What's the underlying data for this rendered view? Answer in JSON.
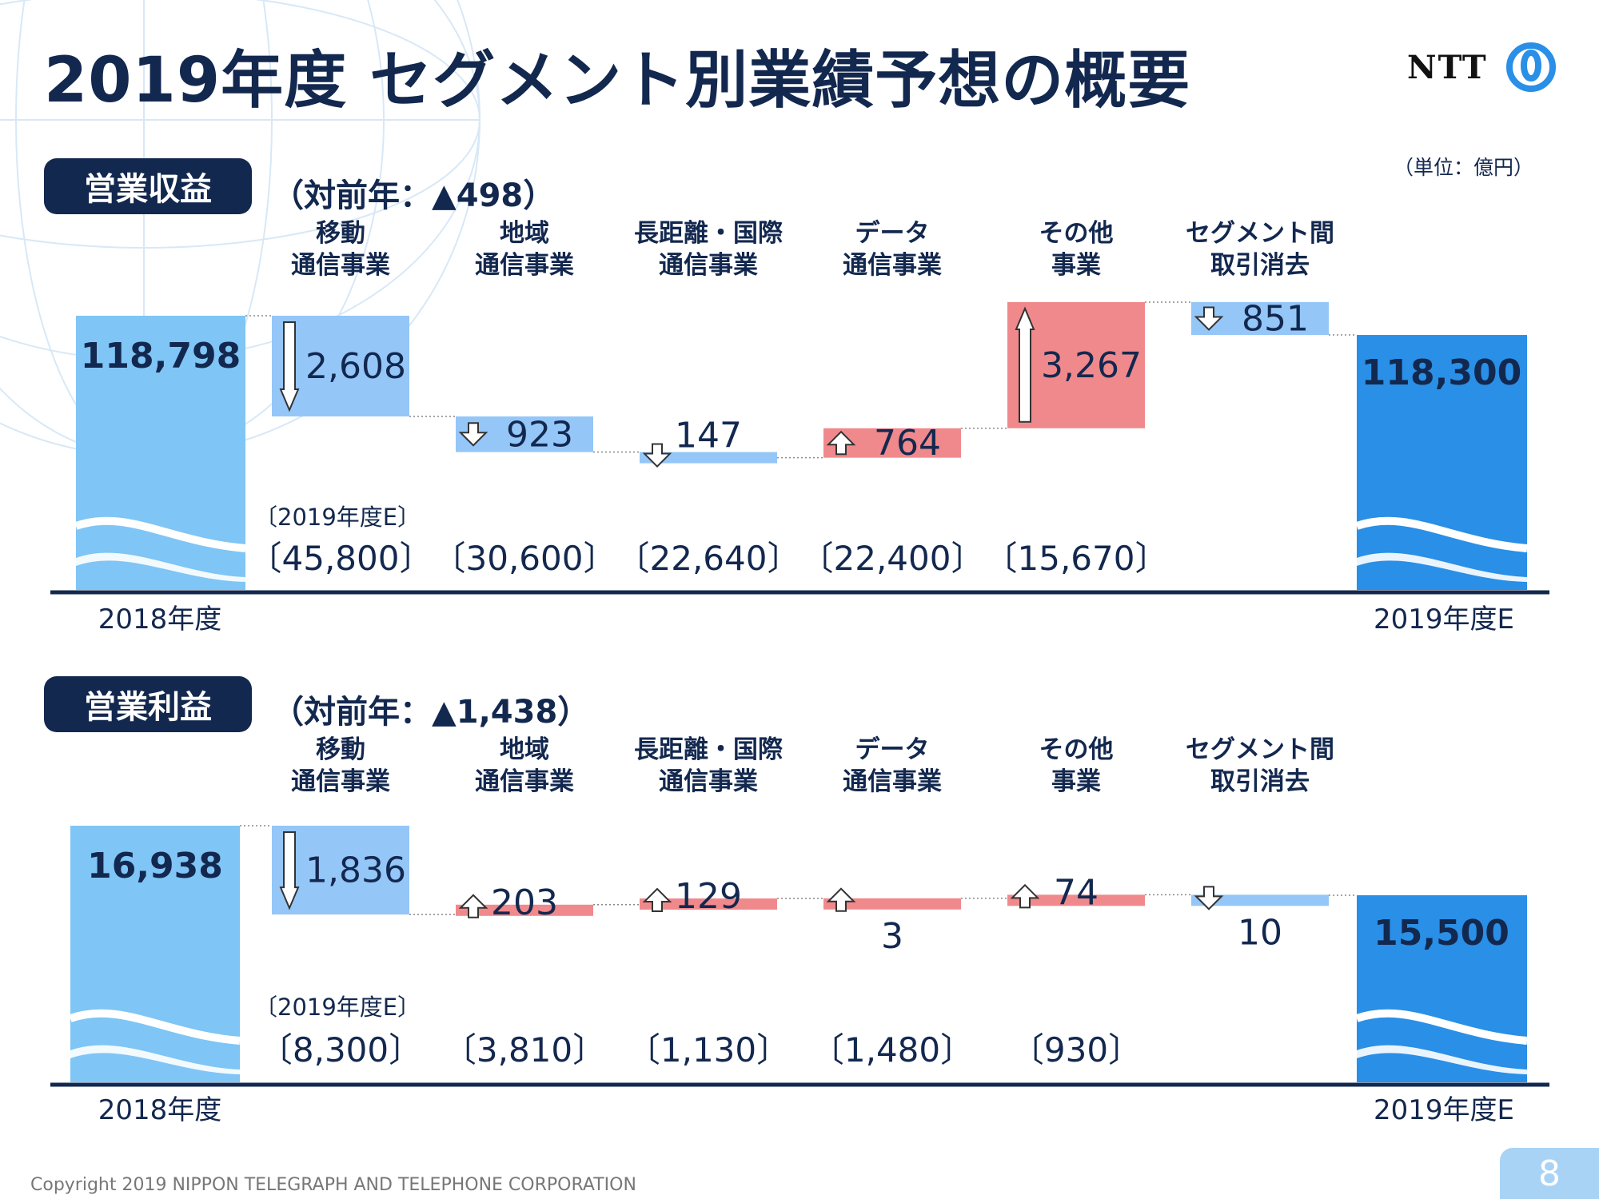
{
  "page": {
    "title": "2019年度 セグメント別業績予想の概要",
    "unit_note": "（単位：億円）",
    "copyright": "Copyright 2019 NIPPON TELEGRAPH AND TELEPHONE CORPORATION",
    "page_number": "8",
    "logo_text": "NTT"
  },
  "colors": {
    "navy": "#13284f",
    "total_light": "#7fc5f5",
    "total_dark": "#2a8fe6",
    "decrease": "#94c6f8",
    "increase": "#f0898c"
  },
  "chart_data": [
    {
      "type": "waterfall",
      "section_label": "営業収益",
      "yoy_text": "（対前年：▲498）",
      "start": {
        "label": "2018年度",
        "value": 118798,
        "value_text": "118,798"
      },
      "end": {
        "label": "2019年度E",
        "value": 118300,
        "value_text": "118,300"
      },
      "forecast_caption": "〔2019年度E〕",
      "segments": [
        {
          "line1": "移動",
          "line2": "通信事業",
          "delta": -2608,
          "value_text": "2,608",
          "forecast": "〔45,800〕"
        },
        {
          "line1": "地域",
          "line2": "通信事業",
          "delta": -923,
          "value_text": "923",
          "forecast": "〔30,600〕"
        },
        {
          "line1": "長距離・国際",
          "line2": "通信事業",
          "delta": -147,
          "value_text": "147",
          "forecast": "〔22,640〕"
        },
        {
          "line1": "データ",
          "line2": "通信事業",
          "delta": 764,
          "value_text": "764",
          "forecast": "〔22,400〕"
        },
        {
          "line1": "その他",
          "line2": "事業",
          "delta": 3267,
          "value_text": "3,267",
          "forecast": "〔15,670〕"
        },
        {
          "line1": "セグメント間",
          "line2": "取引消去",
          "delta": -851,
          "value_text": "851",
          "forecast": ""
        }
      ]
    },
    {
      "type": "waterfall",
      "section_label": "営業利益",
      "yoy_text": "（対前年：▲1,438）",
      "start": {
        "label": "2018年度",
        "value": 16938,
        "value_text": "16,938"
      },
      "end": {
        "label": "2019年度E",
        "value": 15500,
        "value_text": "15,500"
      },
      "forecast_caption": "〔2019年度E〕",
      "segments": [
        {
          "line1": "移動",
          "line2": "通信事業",
          "delta": -1836,
          "value_text": "1,836",
          "forecast": "〔8,300〕"
        },
        {
          "line1": "地域",
          "line2": "通信事業",
          "delta": 203,
          "value_text": "203",
          "forecast": "〔3,810〕"
        },
        {
          "line1": "長距離・国際",
          "line2": "通信事業",
          "delta": 129,
          "value_text": "129",
          "forecast": "〔1,130〕"
        },
        {
          "line1": "データ",
          "line2": "通信事業",
          "delta": 3,
          "value_text": "3",
          "forecast": "〔1,480〕"
        },
        {
          "line1": "その他",
          "line2": "事業",
          "delta": 74,
          "value_text": "74",
          "forecast": "〔930〕"
        },
        {
          "line1": "セグメント間",
          "line2": "取引消去",
          "delta": -10,
          "value_text": "10",
          "forecast": ""
        }
      ]
    }
  ]
}
